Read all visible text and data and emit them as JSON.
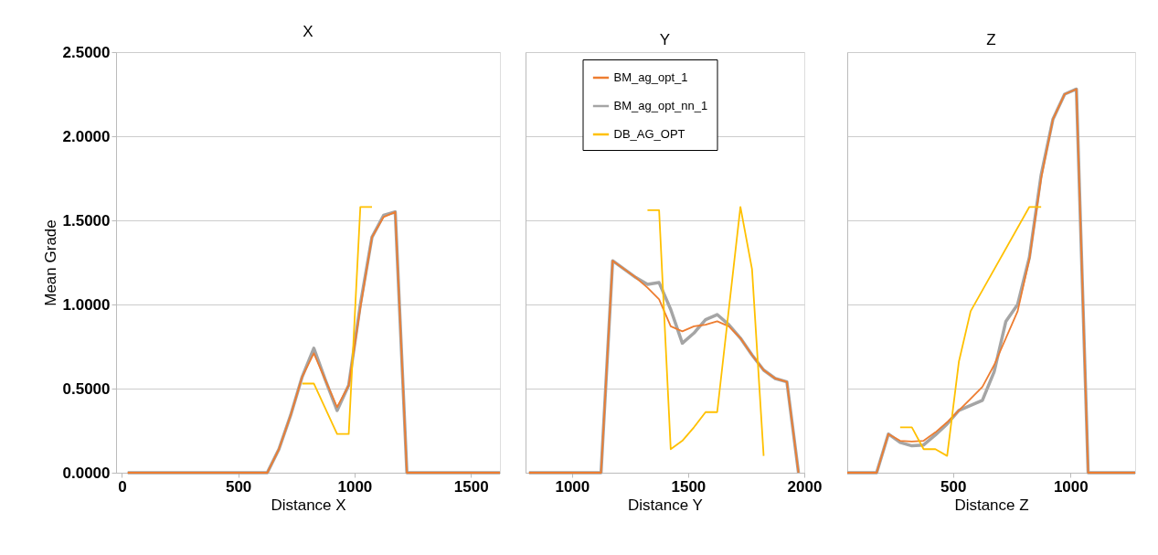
{
  "chart_data": [
    {
      "type": "line",
      "title": "X",
      "xlabel": "Distance X",
      "ylabel": "Mean Grade",
      "xlim": [
        -25,
        1625
      ],
      "xticks": [
        0,
        500,
        1000,
        1500
      ],
      "ylim": [
        0,
        2.5
      ],
      "yticks": [
        {
          "value": 0,
          "label": "0.0000"
        },
        {
          "value": 0.5,
          "label": "0.5000"
        },
        {
          "value": 1,
          "label": "1.0000"
        },
        {
          "value": 1.5,
          "label": "1.5000"
        },
        {
          "value": 2,
          "label": "2.0000"
        },
        {
          "value": 2.5,
          "label": "2.5000"
        }
      ],
      "grid": "y",
      "marker": "none",
      "line_style": "solid",
      "series": [
        {
          "color": "#ed7d31",
          "x": [
            25,
            625,
            675,
            725,
            775,
            825,
            875,
            925,
            975,
            1025,
            1075,
            1125,
            1175,
            1225,
            1625
          ],
          "values": [
            0,
            0,
            0.14,
            0.34,
            0.57,
            0.71,
            0.55,
            0.39,
            0.52,
            0.98,
            1.4,
            1.52,
            1.55,
            0,
            0
          ]
        },
        {
          "color": "#a5a5a5",
          "x": [
            25,
            625,
            675,
            725,
            775,
            825,
            875,
            925,
            975,
            1025,
            1075,
            1125,
            1175,
            1225,
            1625
          ],
          "values": [
            0,
            0,
            0.14,
            0.34,
            0.57,
            0.74,
            0.55,
            0.37,
            0.52,
            1.0,
            1.4,
            1.53,
            1.55,
            0,
            0
          ]
        },
        {
          "color": "#ffc000",
          "x": [
            775,
            825,
            925,
            975,
            1025,
            1075
          ],
          "values": [
            0.53,
            0.53,
            0.23,
            0.23,
            1.58,
            1.58
          ]
        }
      ]
    },
    {
      "type": "line",
      "title": "Y",
      "xlabel": "Distance Y",
      "xlim": [
        800,
        2000
      ],
      "xticks": [
        1000,
        1500,
        2000
      ],
      "ylim": [
        0,
        2.5
      ],
      "yticks": [
        0,
        0.5,
        1,
        1.5,
        2,
        2.5
      ],
      "tick_labels": "x",
      "grid": "y",
      "legend": "top",
      "marker": "none",
      "line_style": "solid",
      "series": [
        {
          "name": "BM_ag_opt_1",
          "color": "#ed7d31",
          "x": [
            815,
            1125,
            1175,
            1225,
            1275,
            1325,
            1375,
            1425,
            1475,
            1525,
            1575,
            1625,
            1675,
            1725,
            1775,
            1825,
            1875,
            1925,
            1975
          ],
          "values": [
            0,
            0,
            1.26,
            1.21,
            1.16,
            1.1,
            1.03,
            0.87,
            0.84,
            0.87,
            0.88,
            0.9,
            0.87,
            0.8,
            0.7,
            0.61,
            0.56,
            0.54,
            0
          ]
        },
        {
          "name": "BM_ag_opt_nn_1",
          "color": "#a5a5a5",
          "x": [
            815,
            1125,
            1175,
            1225,
            1275,
            1325,
            1375,
            1425,
            1475,
            1525,
            1575,
            1625,
            1675,
            1725,
            1775,
            1825,
            1875,
            1925,
            1975
          ],
          "values": [
            0,
            0,
            1.26,
            1.21,
            1.16,
            1.12,
            1.13,
            0.97,
            0.77,
            0.83,
            0.91,
            0.94,
            0.88,
            0.8,
            0.7,
            0.61,
            0.56,
            0.54,
            0
          ]
        },
        {
          "name": "DB_AG_OPT",
          "color": "#ffc000",
          "x": [
            1325,
            1375,
            1425,
            1475,
            1525,
            1575,
            1625,
            1725,
            1775,
            1825
          ],
          "values": [
            1.56,
            1.56,
            0.14,
            0.19,
            0.27,
            0.36,
            0.36,
            1.58,
            1.21,
            0.1
          ]
        }
      ]
    },
    {
      "type": "line",
      "title": "Z",
      "xlabel": "Distance Z",
      "xlim": [
        50,
        1275
      ],
      "xticks": [
        500,
        1000
      ],
      "ylim": [
        0,
        2.5
      ],
      "yticks": [
        0,
        0.5,
        1,
        1.5,
        2,
        2.5
      ],
      "tick_labels": "x",
      "grid": "y",
      "marker": "none",
      "line_style": "solid",
      "series": [
        {
          "color": "#ed7d31",
          "x": [
            50,
            175,
            225,
            275,
            325,
            375,
            425,
            475,
            525,
            575,
            625,
            675,
            725,
            775,
            825,
            875,
            925,
            975,
            1025,
            1075,
            1275
          ],
          "values": [
            0,
            0,
            0.23,
            0.19,
            0.185,
            0.19,
            0.24,
            0.3,
            0.37,
            0.44,
            0.51,
            0.64,
            0.8,
            0.96,
            1.27,
            1.75,
            2.1,
            2.25,
            2.28,
            0,
            0
          ]
        },
        {
          "color": "#a5a5a5",
          "x": [
            50,
            175,
            225,
            275,
            325,
            375,
            425,
            475,
            525,
            575,
            625,
            675,
            725,
            775,
            825,
            875,
            925,
            975,
            1025,
            1075,
            1275
          ],
          "values": [
            0,
            0,
            0.23,
            0.18,
            0.16,
            0.165,
            0.225,
            0.29,
            0.37,
            0.4,
            0.43,
            0.6,
            0.9,
            1.0,
            1.28,
            1.77,
            2.1,
            2.25,
            2.28,
            0,
            0
          ]
        },
        {
          "color": "#ffc000",
          "x": [
            275,
            325,
            375,
            425,
            475,
            525,
            575,
            825,
            875
          ],
          "values": [
            0.27,
            0.27,
            0.14,
            0.14,
            0.1,
            0.66,
            0.96,
            1.58,
            1.58
          ]
        }
      ]
    }
  ]
}
